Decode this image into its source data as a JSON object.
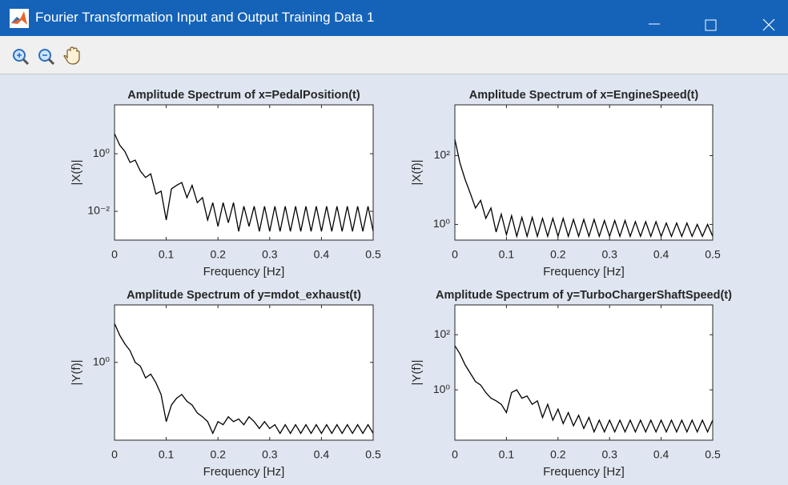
{
  "window": {
    "title": "Fourier Transformation Input and Output Training Data 1"
  },
  "chart_data": [
    {
      "type": "line",
      "title": "Amplitude Spectrum of x=PedalPosition(t)",
      "xlabel": "Frequency [Hz]",
      "ylabel": "|X(f)|",
      "yscale": "log",
      "xlim": [
        0,
        0.5
      ],
      "ylim": [
        0.001,
        50
      ],
      "xticks": [
        0,
        0.1,
        0.2,
        0.3,
        0.4,
        0.5
      ],
      "yticks": [
        {
          "value": 0.01,
          "label": "10⁻²"
        },
        {
          "value": 1,
          "label": "10⁰"
        }
      ],
      "color": "#000000",
      "x": [
        0,
        0.01,
        0.02,
        0.03,
        0.04,
        0.05,
        0.06,
        0.07,
        0.08,
        0.09,
        0.1,
        0.11,
        0.12,
        0.13,
        0.14,
        0.15,
        0.16,
        0.17,
        0.18,
        0.19,
        0.2,
        0.21,
        0.22,
        0.23,
        0.24,
        0.25,
        0.26,
        0.27,
        0.28,
        0.29,
        0.3,
        0.31,
        0.32,
        0.33,
        0.34,
        0.35,
        0.36,
        0.37,
        0.38,
        0.39,
        0.4,
        0.41,
        0.42,
        0.43,
        0.44,
        0.45,
        0.46,
        0.47,
        0.48,
        0.49,
        0.5
      ],
      "values": [
        5,
        2,
        1.2,
        0.5,
        0.6,
        0.25,
        0.15,
        0.2,
        0.04,
        0.05,
        0.005,
        0.06,
        0.08,
        0.1,
        0.03,
        0.08,
        0.02,
        0.03,
        0.005,
        0.02,
        0.003,
        0.02,
        0.004,
        0.02,
        0.002,
        0.015,
        0.003,
        0.015,
        0.002,
        0.015,
        0.002,
        0.015,
        0.002,
        0.015,
        0.002,
        0.015,
        0.002,
        0.015,
        0.002,
        0.015,
        0.002,
        0.015,
        0.002,
        0.015,
        0.002,
        0.015,
        0.002,
        0.015,
        0.002,
        0.015,
        0.002
      ]
    },
    {
      "type": "line",
      "title": "Amplitude Spectrum of x=EngineSpeed(t)",
      "xlabel": "Frequency [Hz]",
      "ylabel": "|X(f)|",
      "yscale": "log",
      "xlim": [
        0,
        0.5
      ],
      "ylim": [
        0.35,
        3000
      ],
      "xticks": [
        0,
        0.1,
        0.2,
        0.3,
        0.4,
        0.5
      ],
      "yticks": [
        {
          "value": 1,
          "label": "10⁰"
        },
        {
          "value": 100,
          "label": "10²"
        }
      ],
      "color": "#000000",
      "x": [
        0,
        0.01,
        0.02,
        0.03,
        0.04,
        0.05,
        0.06,
        0.07,
        0.08,
        0.09,
        0.1,
        0.11,
        0.12,
        0.13,
        0.14,
        0.15,
        0.16,
        0.17,
        0.18,
        0.19,
        0.2,
        0.21,
        0.22,
        0.23,
        0.24,
        0.25,
        0.26,
        0.27,
        0.28,
        0.29,
        0.3,
        0.31,
        0.32,
        0.33,
        0.34,
        0.35,
        0.36,
        0.37,
        0.38,
        0.39,
        0.4,
        0.41,
        0.42,
        0.43,
        0.44,
        0.45,
        0.46,
        0.47,
        0.48,
        0.49,
        0.5
      ],
      "values": [
        300,
        60,
        20,
        8,
        3,
        5,
        1.5,
        3,
        0.6,
        2,
        0.5,
        1.8,
        0.45,
        1.6,
        0.45,
        1.6,
        0.45,
        1.5,
        0.45,
        1.5,
        0.45,
        1.5,
        0.45,
        1.4,
        0.45,
        1.4,
        0.45,
        1.4,
        0.45,
        1.3,
        0.45,
        1.3,
        0.45,
        1.3,
        0.45,
        1.2,
        0.45,
        1.2,
        0.45,
        1.2,
        0.45,
        1.1,
        0.45,
        1.1,
        0.45,
        1.1,
        0.45,
        1,
        0.45,
        1,
        0.45
      ]
    },
    {
      "type": "line",
      "title": "Amplitude Spectrum of y=mdot_exhaust(t)",
      "xlabel": "Frequency [Hz]",
      "ylabel": "|Y(f)|",
      "yscale": "log",
      "xlim": [
        0,
        0.5
      ],
      "ylim": [
        0.01,
        30
      ],
      "xticks": [
        0,
        0.1,
        0.2,
        0.3,
        0.4,
        0.5
      ],
      "yticks": [
        {
          "value": 1,
          "label": "10⁰"
        }
      ],
      "color": "#000000",
      "x": [
        0,
        0.01,
        0.02,
        0.03,
        0.04,
        0.05,
        0.06,
        0.07,
        0.08,
        0.09,
        0.1,
        0.11,
        0.12,
        0.13,
        0.14,
        0.15,
        0.16,
        0.17,
        0.18,
        0.19,
        0.2,
        0.21,
        0.22,
        0.23,
        0.24,
        0.25,
        0.26,
        0.27,
        0.28,
        0.29,
        0.3,
        0.31,
        0.32,
        0.33,
        0.34,
        0.35,
        0.36,
        0.37,
        0.38,
        0.39,
        0.4,
        0.41,
        0.42,
        0.43,
        0.44,
        0.45,
        0.46,
        0.47,
        0.48,
        0.49,
        0.5
      ],
      "values": [
        10,
        5,
        3,
        2,
        1,
        0.8,
        0.4,
        0.5,
        0.3,
        0.15,
        0.03,
        0.08,
        0.12,
        0.15,
        0.1,
        0.08,
        0.05,
        0.04,
        0.03,
        0.015,
        0.03,
        0.025,
        0.04,
        0.03,
        0.035,
        0.025,
        0.04,
        0.03,
        0.02,
        0.03,
        0.02,
        0.025,
        0.015,
        0.025,
        0.015,
        0.025,
        0.015,
        0.025,
        0.015,
        0.025,
        0.015,
        0.025,
        0.015,
        0.025,
        0.015,
        0.025,
        0.015,
        0.025,
        0.015,
        0.025,
        0.015
      ]
    },
    {
      "type": "line",
      "title": "Amplitude Spectrum of y=TurboChargerShaftSpeed(t)",
      "xlabel": "Frequency [Hz]",
      "ylabel": "|Y(f)|",
      "yscale": "log",
      "xlim": [
        0,
        0.5
      ],
      "ylim": [
        0.015,
        1200
      ],
      "xticks": [
        0,
        0.1,
        0.2,
        0.3,
        0.4,
        0.5
      ],
      "yticks": [
        {
          "value": 1,
          "label": "10⁰"
        },
        {
          "value": 100,
          "label": "10²"
        }
      ],
      "color": "#000000",
      "x": [
        0,
        0.01,
        0.02,
        0.03,
        0.04,
        0.05,
        0.06,
        0.07,
        0.08,
        0.09,
        0.1,
        0.11,
        0.12,
        0.13,
        0.14,
        0.15,
        0.16,
        0.17,
        0.18,
        0.19,
        0.2,
        0.21,
        0.22,
        0.23,
        0.24,
        0.25,
        0.26,
        0.27,
        0.28,
        0.29,
        0.3,
        0.31,
        0.32,
        0.33,
        0.34,
        0.35,
        0.36,
        0.37,
        0.38,
        0.39,
        0.4,
        0.41,
        0.42,
        0.43,
        0.44,
        0.45,
        0.46,
        0.47,
        0.48,
        0.49,
        0.5
      ],
      "values": [
        40,
        20,
        8,
        4,
        2,
        1.5,
        0.8,
        0.5,
        0.4,
        0.3,
        0.15,
        0.8,
        1,
        0.5,
        0.6,
        0.3,
        0.4,
        0.1,
        0.3,
        0.08,
        0.2,
        0.06,
        0.15,
        0.05,
        0.12,
        0.04,
        0.1,
        0.03,
        0.08,
        0.03,
        0.08,
        0.03,
        0.08,
        0.03,
        0.08,
        0.03,
        0.08,
        0.03,
        0.08,
        0.03,
        0.08,
        0.03,
        0.08,
        0.03,
        0.08,
        0.03,
        0.08,
        0.03,
        0.08,
        0.03,
        0.08
      ]
    }
  ]
}
